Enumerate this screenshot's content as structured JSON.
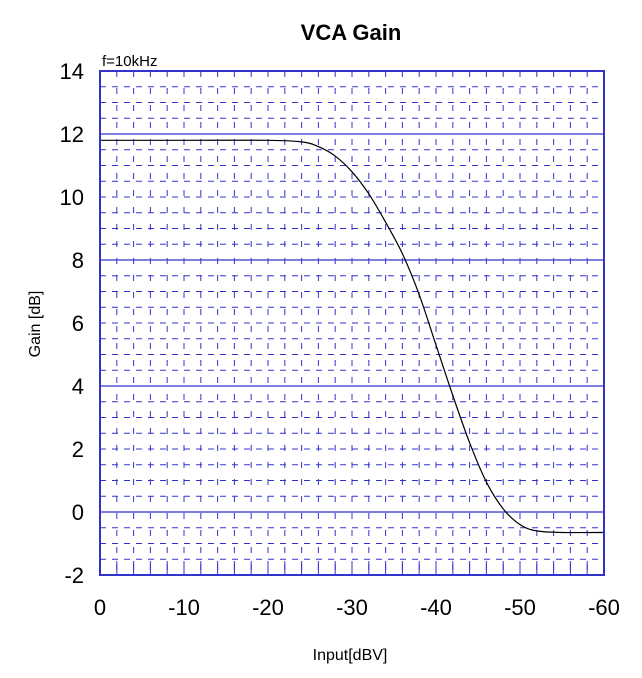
{
  "chart_data": {
    "type": "line",
    "title": "VCA Gain",
    "annotation": "f=10kHz",
    "xlabel": "Input[dBV]",
    "ylabel": "Gain [dB]",
    "xlim": [
      0,
      -60
    ],
    "ylim": [
      -2,
      14
    ],
    "xticks": [
      0,
      -10,
      -20,
      -30,
      -40,
      -50,
      -60
    ],
    "xtick_labels": [
      "0",
      "-10",
      "-20",
      "-30",
      "-40",
      "-50",
      "-60"
    ],
    "yticks": [
      14,
      12,
      10,
      8,
      6,
      4,
      2,
      0,
      -2
    ],
    "ytick_labels": [
      "14",
      "12",
      "10",
      "8",
      "6",
      "4",
      "2",
      "0",
      "-2"
    ],
    "grid": true,
    "series": [
      {
        "name": "Gain",
        "color": "#000000",
        "x": [
          0,
          -10,
          -20,
          -24,
          -26,
          -28,
          -30,
          -32,
          -34,
          -36,
          -38,
          -40,
          -42,
          -44,
          -46,
          -48,
          -50,
          -52,
          -55,
          -60
        ],
        "y": [
          11.8,
          11.8,
          11.8,
          11.75,
          11.6,
          11.3,
          10.8,
          10.1,
          9.2,
          8.2,
          6.9,
          5.3,
          3.7,
          2.2,
          0.95,
          0.1,
          -0.4,
          -0.6,
          -0.65,
          -0.65
        ]
      }
    ],
    "grid_color": "#3333cc"
  }
}
